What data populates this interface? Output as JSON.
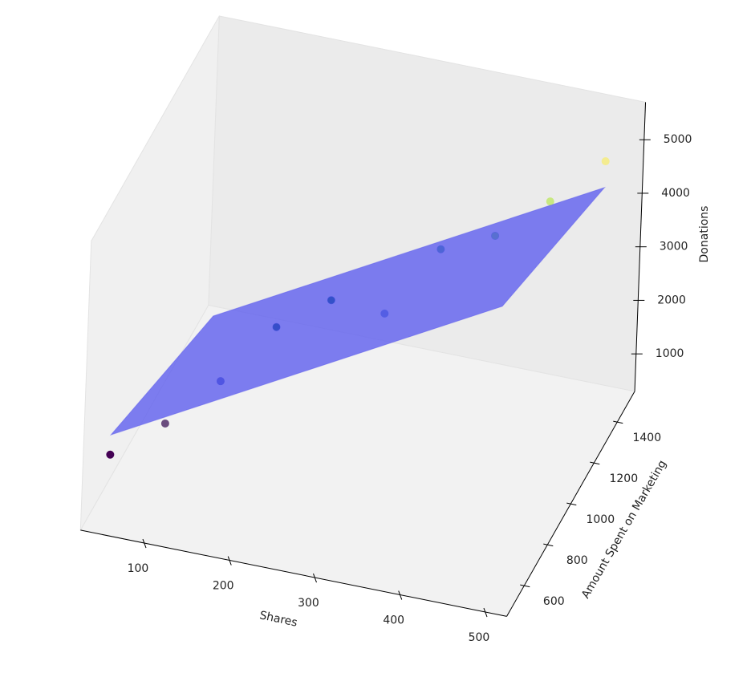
{
  "chart_data": {
    "type": "scatter3d",
    "xlabel": "Shares",
    "ylabel": "Amount Spent on Marketing",
    "zlabel": "Donations",
    "x": [
      50,
      100,
      150,
      200,
      250,
      300,
      350,
      400,
      450,
      500
    ],
    "y": [
      500,
      600,
      700,
      800,
      900,
      1000,
      1100,
      1200,
      1300,
      1400
    ],
    "z": [
      1600,
      1960,
      2530,
      3320,
      3600,
      3130,
      4110,
      4140,
      4560,
      5090
    ],
    "colors": [
      "#440154",
      "#6a4c7e",
      "#2b3fb8",
      "#2d4bc0",
      "#2a4fc0",
      "#3e6bc0",
      "#4a68d0",
      "#5876c8",
      "#c8e880",
      "#f4ec90"
    ],
    "surface": {
      "x": [
        50,
        500
      ],
      "y": [
        500,
        1400
      ],
      "z": [
        [
          1970,
          750
        ],
        [
          5820,
          4600
        ]
      ],
      "color": "#5b5bee"
    },
    "xlim": [
      25,
      525
    ],
    "ylim": [
      450,
      1550
    ],
    "zlim": [
      300,
      5700
    ],
    "xticks": [
      100,
      200,
      300,
      400,
      500
    ],
    "yticks": [
      600,
      800,
      1000,
      1200,
      1400
    ],
    "zticks": [
      1000,
      2000,
      3000,
      4000,
      5000
    ],
    "grid": false
  }
}
